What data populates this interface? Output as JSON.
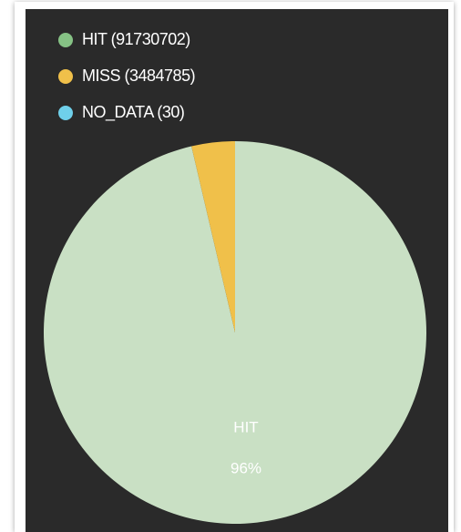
{
  "chart_data": {
    "type": "pie",
    "categories": [
      "HIT",
      "MISS",
      "NO_DATA"
    ],
    "values": [
      91730702,
      3484785,
      30
    ],
    "legend_labels": [
      "HIT (91730702)",
      "MISS (3484785)",
      "NO_DATA (30)"
    ],
    "value_labels": [
      "96%",
      null,
      null
    ],
    "colors": [
      "#c9e0c4",
      "#f0c04a",
      "#6fd0ea"
    ],
    "legend_colors": [
      "#86c285",
      "#f0c04a",
      "#6fd0ea"
    ]
  }
}
